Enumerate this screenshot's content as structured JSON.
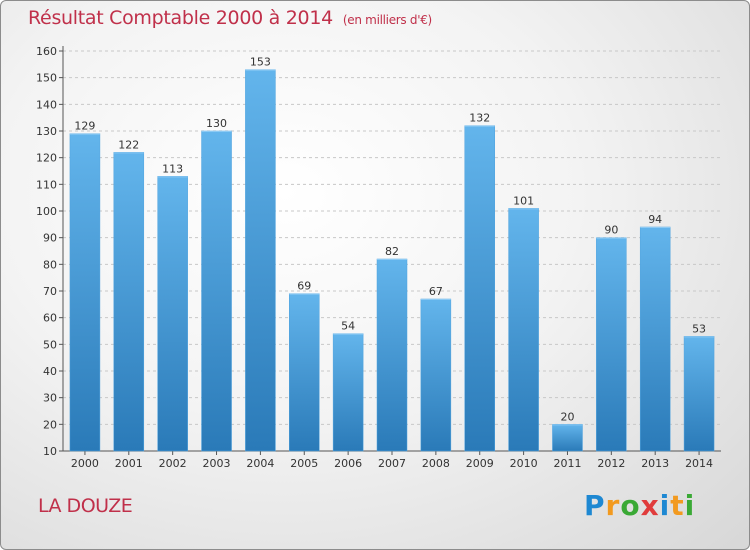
{
  "header": {
    "title": "Résultat Comptable 2000 à 2014",
    "subtitle": "(en milliers d'€)"
  },
  "footer": {
    "place": "LA DOUZE",
    "logo": [
      "P",
      "r",
      "o",
      "x",
      "i",
      "t",
      "i"
    ]
  },
  "colors": {
    "title": "#c0304a",
    "bar_top": "#63b5ec",
    "bar_bottom": "#2a7ab8"
  },
  "chart_data": {
    "type": "bar",
    "title": "Résultat Comptable 2000 à 2014",
    "subtitle": "(en milliers d'€)",
    "categories": [
      "2000",
      "2001",
      "2002",
      "2003",
      "2004",
      "2005",
      "2006",
      "2007",
      "2008",
      "2009",
      "2010",
      "2011",
      "2012",
      "2013",
      "2014"
    ],
    "values": [
      129,
      122,
      113,
      130,
      153,
      69,
      54,
      82,
      67,
      132,
      101,
      20,
      90,
      94,
      53
    ],
    "ylim": [
      10,
      160
    ],
    "yticks": [
      10,
      20,
      30,
      40,
      50,
      60,
      70,
      80,
      90,
      100,
      110,
      120,
      130,
      140,
      150,
      160
    ],
    "grid": true,
    "data_labels": true
  }
}
